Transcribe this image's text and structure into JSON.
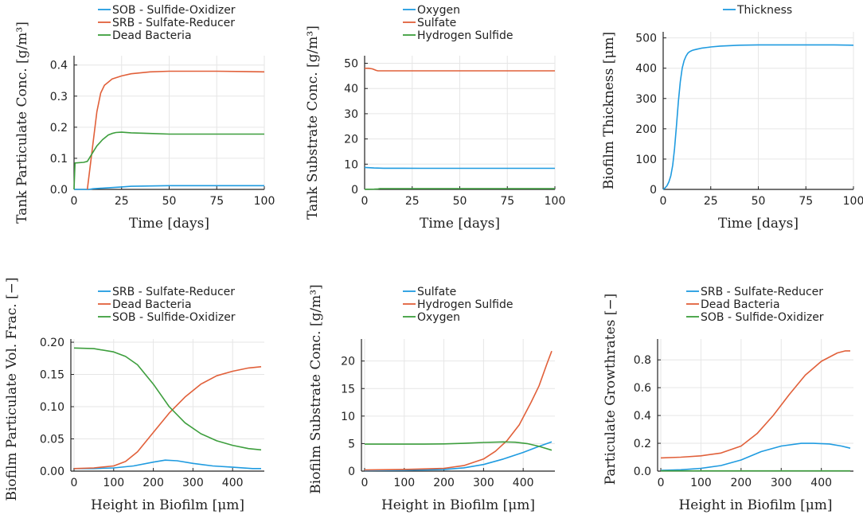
{
  "colors": {
    "blue": "#1f9be0",
    "orange": "#e1603a",
    "green": "#3d9e3d"
  },
  "chart_data": [
    {
      "type": "line",
      "xlabel": "Time [days]",
      "ylabel": "Tank Particulate Conc. [g/m³]",
      "xlim": [
        0,
        100
      ],
      "ylim": [
        0,
        0.43
      ],
      "xticks": [
        0,
        25,
        50,
        75,
        100
      ],
      "xtick_labels": [
        "0",
        "25",
        "50",
        "75",
        "100"
      ],
      "yticks": [
        0,
        0.1,
        0.2,
        0.3,
        0.4
      ],
      "ytick_labels": [
        "0.0",
        "0.1",
        "0.2",
        "0.3",
        "0.4"
      ],
      "grid": true,
      "legend": "top-center",
      "series": [
        {
          "name": "SOB - Sulfide-Oxidizer",
          "color": "blue",
          "x": [
            0,
            5,
            8,
            10,
            15,
            20,
            25,
            30,
            40,
            50,
            60,
            75,
            90,
            100
          ],
          "y": [
            0,
            0,
            0,
            0.002,
            0.004,
            0.006,
            0.008,
            0.01,
            0.011,
            0.012,
            0.012,
            0.012,
            0.012,
            0.012
          ]
        },
        {
          "name": "SRB - Sulfate-Reducer",
          "color": "orange",
          "x": [
            7,
            8,
            10,
            12,
            14,
            16,
            18,
            20,
            25,
            30,
            40,
            50,
            60,
            75,
            90,
            100
          ],
          "y": [
            0,
            0.05,
            0.15,
            0.25,
            0.31,
            0.335,
            0.345,
            0.355,
            0.365,
            0.372,
            0.378,
            0.38,
            0.38,
            0.38,
            0.379,
            0.378
          ]
        },
        {
          "name": "Dead Bacteria",
          "color": "green",
          "x": [
            0,
            0.5,
            5,
            7,
            8,
            10,
            12,
            15,
            18,
            20,
            22,
            25,
            30,
            40,
            50,
            60,
            75,
            90,
            100
          ],
          "y": [
            0,
            0.085,
            0.087,
            0.09,
            0.1,
            0.12,
            0.14,
            0.16,
            0.175,
            0.18,
            0.183,
            0.184,
            0.182,
            0.18,
            0.178,
            0.178,
            0.178,
            0.178,
            0.178
          ]
        }
      ]
    },
    {
      "type": "line",
      "xlabel": "Time [days]",
      "ylabel": "Tank Substrate Conc. [g/m³]",
      "xlim": [
        0,
        100
      ],
      "ylim": [
        0,
        53
      ],
      "xticks": [
        0,
        25,
        50,
        75,
        100
      ],
      "xtick_labels": [
        "0",
        "25",
        "50",
        "75",
        "100"
      ],
      "yticks": [
        0,
        10,
        20,
        30,
        40,
        50
      ],
      "ytick_labels": [
        "0",
        "10",
        "20",
        "30",
        "40",
        "50"
      ],
      "grid": true,
      "legend": "top-center",
      "series": [
        {
          "name": "Oxygen",
          "color": "blue",
          "x": [
            0,
            2,
            5,
            10,
            20,
            30,
            50,
            75,
            100
          ],
          "y": [
            8.7,
            8.6,
            8.5,
            8.4,
            8.4,
            8.35,
            8.35,
            8.35,
            8.35
          ]
        },
        {
          "name": "Sulfate",
          "color": "orange",
          "x": [
            0,
            2,
            4,
            5,
            6,
            7,
            8,
            10,
            15,
            20,
            30,
            50,
            75,
            100
          ],
          "y": [
            48,
            48,
            47.8,
            47.5,
            47.2,
            47,
            47,
            47,
            47,
            47,
            47,
            47,
            47,
            47
          ]
        },
        {
          "name": "Hydrogen Sulfide",
          "color": "green",
          "x": [
            0,
            2,
            5,
            7,
            8,
            10,
            20,
            50,
            100
          ],
          "y": [
            0.05,
            0.05,
            0.1,
            0.2,
            0.3,
            0.3,
            0.3,
            0.3,
            0.3
          ]
        }
      ]
    },
    {
      "type": "line",
      "xlabel": "Time [days]",
      "ylabel": "Biofilm Thickness [μm]",
      "xlim": [
        0,
        100
      ],
      "ylim": [
        0,
        520
      ],
      "xticks": [
        0,
        25,
        50,
        75,
        100
      ],
      "xtick_labels": [
        "0",
        "25",
        "50",
        "75",
        "100"
      ],
      "yticks": [
        0,
        100,
        200,
        300,
        400,
        500
      ],
      "ytick_labels": [
        "0",
        "100",
        "200",
        "300",
        "400",
        "500"
      ],
      "grid": true,
      "legend": "top-center",
      "series": [
        {
          "name": "Thickness",
          "color": "blue",
          "x": [
            0,
            1,
            2,
            3,
            4,
            5,
            6,
            7,
            8,
            9,
            10,
            11,
            12,
            13,
            14,
            15,
            16,
            18,
            20,
            25,
            30,
            40,
            50,
            60,
            75,
            90,
            100
          ],
          "y": [
            0,
            5,
            12,
            25,
            45,
            80,
            135,
            210,
            290,
            355,
            400,
            425,
            440,
            450,
            455,
            458,
            460,
            463,
            466,
            470,
            473,
            476,
            477,
            477,
            477,
            477,
            476
          ]
        }
      ]
    },
    {
      "type": "line",
      "xlabel": "Height in Biofilm [μm]",
      "ylabel": "Biofilm Particulate Vol. Frac. [−]",
      "xlim": [
        -8,
        480
      ],
      "ylim": [
        0,
        0.205
      ],
      "xticks": [
        0,
        100,
        200,
        300,
        400
      ],
      "xtick_labels": [
        "0",
        "100",
        "200",
        "300",
        "400"
      ],
      "yticks": [
        0,
        0.05,
        0.1,
        0.15,
        0.2
      ],
      "ytick_labels": [
        "0.00",
        "0.05",
        "0.10",
        "0.15",
        "0.20"
      ],
      "grid": true,
      "legend": "top-center",
      "series": [
        {
          "name": "SRB - Sulfate-Reducer",
          "color": "blue",
          "x": [
            0,
            50,
            100,
            150,
            200,
            230,
            260,
            300,
            350,
            400,
            450,
            472
          ],
          "y": [
            0.004,
            0.004,
            0.005,
            0.008,
            0.014,
            0.017,
            0.016,
            0.012,
            0.008,
            0.006,
            0.004,
            0.004
          ]
        },
        {
          "name": "Dead Bacteria",
          "color": "orange",
          "x": [
            0,
            50,
            100,
            130,
            160,
            200,
            240,
            280,
            320,
            360,
            400,
            440,
            472
          ],
          "y": [
            0.004,
            0.005,
            0.008,
            0.015,
            0.03,
            0.06,
            0.09,
            0.115,
            0.135,
            0.148,
            0.155,
            0.16,
            0.162
          ]
        },
        {
          "name": "SOB - Sulfide-Oxidizer",
          "color": "green",
          "x": [
            0,
            50,
            100,
            130,
            160,
            200,
            240,
            280,
            320,
            360,
            400,
            440,
            472
          ],
          "y": [
            0.191,
            0.19,
            0.185,
            0.178,
            0.165,
            0.135,
            0.1,
            0.075,
            0.058,
            0.047,
            0.04,
            0.035,
            0.033
          ]
        }
      ]
    },
    {
      "type": "line",
      "xlabel": "Height in Biofilm [μm]",
      "ylabel": "Biofilm Substrate Conc. [g/m³]",
      "xlim": [
        -8,
        480
      ],
      "ylim": [
        0,
        24
      ],
      "xticks": [
        0,
        100,
        200,
        300,
        400
      ],
      "xtick_labels": [
        "0",
        "100",
        "200",
        "300",
        "400"
      ],
      "yticks": [
        0,
        5,
        10,
        15,
        20
      ],
      "ytick_labels": [
        "0",
        "5",
        "10",
        "15",
        "20"
      ],
      "grid": true,
      "legend": "top-center",
      "series": [
        {
          "name": "Sulfate",
          "color": "blue",
          "x": [
            0,
            100,
            200,
            250,
            300,
            350,
            400,
            440,
            472
          ],
          "y": [
            0.1,
            0.15,
            0.3,
            0.6,
            1.2,
            2.2,
            3.4,
            4.5,
            5.3
          ]
        },
        {
          "name": "Hydrogen Sulfide",
          "color": "orange",
          "x": [
            0,
            100,
            200,
            250,
            300,
            330,
            360,
            390,
            420,
            440,
            460,
            472
          ],
          "y": [
            0.2,
            0.3,
            0.5,
            1.0,
            2.2,
            3.6,
            5.6,
            8.4,
            12.5,
            15.5,
            19.5,
            21.8
          ]
        },
        {
          "name": "Oxygen",
          "color": "green",
          "x": [
            0,
            50,
            100,
            150,
            200,
            250,
            300,
            350,
            380,
            410,
            440,
            472
          ],
          "y": [
            4.9,
            4.9,
            4.9,
            4.9,
            4.95,
            5.05,
            5.2,
            5.3,
            5.25,
            5.0,
            4.5,
            3.8
          ]
        }
      ]
    },
    {
      "type": "line",
      "xlabel": "Height in Biofilm [μm]",
      "ylabel": "Particulate Growthrates [−]",
      "xlim": [
        -8,
        480
      ],
      "ylim": [
        0,
        0.95
      ],
      "xticks": [
        0,
        100,
        200,
        300,
        400
      ],
      "xtick_labels": [
        "0",
        "100",
        "200",
        "300",
        "400"
      ],
      "yticks": [
        0,
        0.2,
        0.4,
        0.6,
        0.8
      ],
      "ytick_labels": [
        "0.0",
        "0.2",
        "0.4",
        "0.6",
        "0.8"
      ],
      "grid": true,
      "legend": "top-center",
      "series": [
        {
          "name": "SRB - Sulfate-Reducer",
          "color": "blue",
          "x": [
            0,
            50,
            100,
            150,
            200,
            250,
            300,
            350,
            380,
            420,
            450,
            472
          ],
          "y": [
            0.005,
            0.01,
            0.02,
            0.04,
            0.08,
            0.14,
            0.18,
            0.2,
            0.2,
            0.195,
            0.18,
            0.165
          ]
        },
        {
          "name": "Dead Bacteria",
          "color": "orange",
          "x": [
            0,
            50,
            100,
            150,
            200,
            240,
            280,
            320,
            360,
            400,
            440,
            460,
            472
          ],
          "y": [
            0.095,
            0.1,
            0.11,
            0.13,
            0.18,
            0.27,
            0.4,
            0.55,
            0.69,
            0.79,
            0.85,
            0.865,
            0.865
          ]
        },
        {
          "name": "SOB - Sulfide-Oxidizer",
          "color": "green",
          "x": [
            0,
            100,
            200,
            300,
            400,
            472
          ],
          "y": [
            0.002,
            0.002,
            0.002,
            0.002,
            0.002,
            0.002
          ]
        }
      ]
    }
  ]
}
